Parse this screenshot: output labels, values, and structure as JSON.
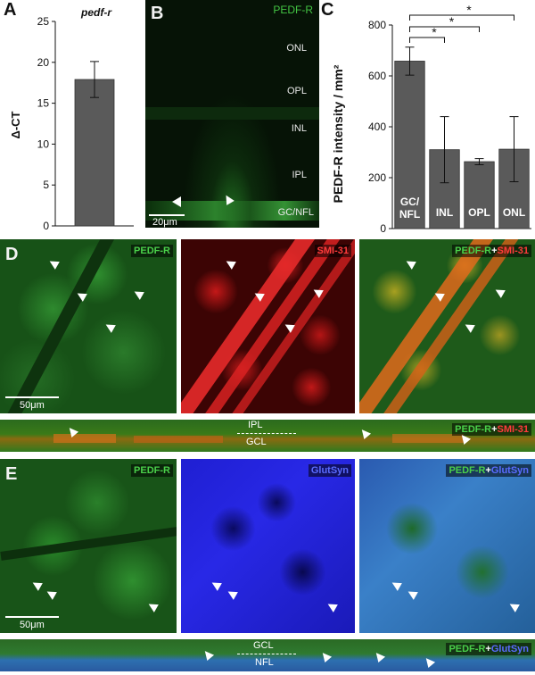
{
  "panels": {
    "a": {
      "letter": "A",
      "title": "pedf-r",
      "ylabel": "Δ-CT"
    },
    "b": {
      "letter": "B",
      "marker": "PEDF-R",
      "layers": [
        "ONL",
        "OPL",
        "INL",
        "IPL",
        "GC/NFL"
      ],
      "scale": "20μm"
    },
    "c": {
      "letter": "C",
      "ylabel": "PEDF-R intensity / mm²",
      "sig": "*"
    },
    "d": {
      "letter": "D",
      "labels": [
        "PEDF-R",
        "SMI-31"
      ],
      "plus": "+",
      "scale": "50μm",
      "strip_layers": [
        "IPL",
        "GCL"
      ]
    },
    "e": {
      "letter": "E",
      "labels": [
        "PEDF-R",
        "GlutSyn"
      ],
      "plus": "+",
      "scale": "50μm",
      "strip_layers": [
        "GCL",
        "NFL"
      ]
    }
  },
  "chart_data": [
    {
      "type": "bar",
      "title": "pedf-r",
      "ylabel": "Δ-CT",
      "categories": [
        ""
      ],
      "values": [
        17.9
      ],
      "error": [
        2.2
      ],
      "ylim": [
        0,
        25
      ],
      "yticks": [
        0,
        5,
        10,
        15,
        20,
        25
      ],
      "color": "#5a5a5a"
    },
    {
      "type": "bar",
      "ylabel": "PEDF-R intensity / mm²",
      "categories": [
        "GC/ NFL",
        "INL",
        "OPL",
        "ONL"
      ],
      "values": [
        658,
        310,
        263,
        312
      ],
      "error": [
        55,
        130,
        12,
        128
      ],
      "ylim": [
        0,
        800
      ],
      "yticks": [
        0,
        200,
        400,
        600,
        800
      ],
      "color": "#5a5a5a",
      "significance": [
        "GC/ NFL vs INL",
        "GC/ NFL vs OPL",
        "GC/ NFL vs ONL"
      ]
    }
  ]
}
